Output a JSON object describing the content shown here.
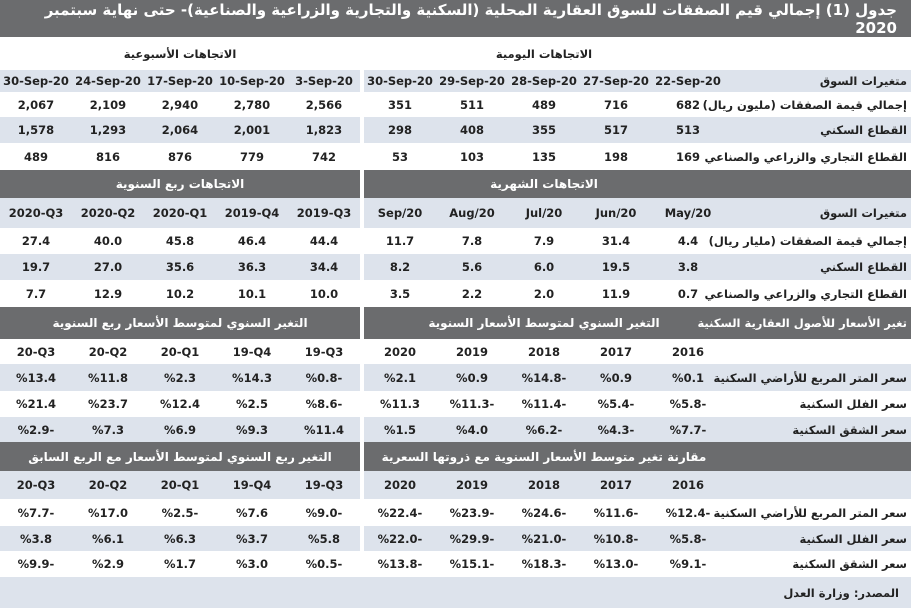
{
  "title": "جدول (1) إجمالي قيم الصفقات للسوق العقارية المحلية (السكنية والتجارية والزراعية والصناعية)- حتى نهاية سبتمبر 2020",
  "sections": [
    {
      "header_label": "",
      "header_right": "الاتجاهات اليومية",
      "header_left": "الاتجاهات الأسبوعية",
      "header_dark": false,
      "cols_label": "متغيرات السوق",
      "cols_right": [
        "22-Sep-20",
        "27-Sep-20",
        "28-Sep-20",
        "29-Sep-20",
        "30-Sep-20"
      ],
      "cols_left": [
        "3-Sep-20",
        "10-Sep-20",
        "17-Sep-20",
        "24-Sep-20",
        "30-Sep-20"
      ],
      "rows": [
        {
          "label": "إجمالي قيمة الصفقات (مليون ريال)",
          "right": [
            "682",
            "716",
            "489",
            "511",
            "351"
          ],
          "left": [
            "2,566",
            "2,780",
            "2,940",
            "2,109",
            "2,067"
          ]
        },
        {
          "label": "القطاع السكني",
          "right": [
            "513",
            "517",
            "355",
            "408",
            "298"
          ],
          "left": [
            "1,823",
            "2,001",
            "2,064",
            "1,293",
            "1,578"
          ]
        },
        {
          "label": "القطاع التجاري والزراعي والصناعي",
          "right": [
            "169",
            "198",
            "135",
            "103",
            "53"
          ],
          "left": [
            "742",
            "779",
            "876",
            "816",
            "489"
          ]
        }
      ]
    },
    {
      "header_label": "",
      "header_right": "الاتجاهات الشهرية",
      "header_left": "الاتجاهات ربع السنوية",
      "header_dark": true,
      "cols_label": "متغيرات السوق",
      "cols_right": [
        "May/20",
        "Jun/20",
        "Jul/20",
        "Aug/20",
        "Sep/20"
      ],
      "cols_left": [
        "2019-Q3",
        "2019-Q4",
        "2020-Q1",
        "2020-Q2",
        "2020-Q3"
      ],
      "rows": [
        {
          "label": "إجمالي قيمة الصفقات (مليار ريال)",
          "right": [
            "4.4",
            "31.4",
            "7.9",
            "7.8",
            "11.7"
          ],
          "left": [
            "44.4",
            "46.4",
            "45.8",
            "40.0",
            "27.4"
          ]
        },
        {
          "label": "القطاع السكني",
          "right": [
            "3.8",
            "19.5",
            "6.0",
            "5.6",
            "8.2"
          ],
          "left": [
            "34.4",
            "36.3",
            "35.6",
            "27.0",
            "19.7"
          ]
        },
        {
          "label": "القطاع التجاري والزراعي والصناعي",
          "right": [
            "0.7",
            "11.9",
            "2.0",
            "2.2",
            "3.5"
          ],
          "left": [
            "10.0",
            "10.1",
            "10.2",
            "12.9",
            "7.7"
          ]
        }
      ]
    },
    {
      "header_label": "تغير الأسعار للأصول العقارية السكنية",
      "header_right": "التغير السنوي لمتوسط الأسعار السنوية",
      "header_left": "التغير السنوي لمتوسط الأسعار ربع السنوية",
      "header_dark": true,
      "cols_label": "",
      "cols_right": [
        "2016",
        "2017",
        "2018",
        "2019",
        "2020"
      ],
      "cols_left": [
        "19-Q3",
        "19-Q4",
        "20-Q1",
        "20-Q2",
        "20-Q3"
      ],
      "rows": [
        {
          "label": "سعر المتر المربع للأراضي السكنية",
          "right": [
            "%0.1",
            "%0.9",
            "%14.8-",
            "%0.9",
            "%2.1"
          ],
          "left": [
            "%0.8-",
            "%14.3",
            "%2.3",
            "%11.8",
            "%13.4"
          ]
        },
        {
          "label": "سعر الفلل السكنية",
          "right": [
            "%5.8-",
            "%5.4-",
            "%11.4-",
            "%11.3-",
            "%11.3"
          ],
          "left": [
            "%8.6-",
            "%2.5",
            "%12.4",
            "%23.7",
            "%21.4"
          ]
        },
        {
          "label": "سعر الشقق السكنية",
          "right": [
            "%7.7-",
            "%4.3-",
            "%6.2-",
            "%4.0",
            "%1.5"
          ],
          "left": [
            "%11.4",
            "%9.3",
            "%6.9",
            "%7.3",
            "%2.9-"
          ]
        }
      ]
    },
    {
      "header_label": "",
      "header_right": "مقارنة تغير متوسط الأسعار السنوية مع ذروتها السعرية",
      "header_left": "التغير ربع السنوي لمتوسط الأسعار مع الربع السابق",
      "header_dark": true,
      "cols_label": "",
      "cols_right": [
        "2016",
        "2017",
        "2018",
        "2019",
        "2020"
      ],
      "cols_left": [
        "19-Q3",
        "19-Q4",
        "20-Q1",
        "20-Q2",
        "20-Q3"
      ],
      "rows": [
        {
          "label": "سعر المتر المربع للأراضي السكنية",
          "right": [
            "%12.4-",
            "%11.6-",
            "%24.6-",
            "%23.9-",
            "%22.4-"
          ],
          "left": [
            "%9.0-",
            "%7.6",
            "%2.5-",
            "%17.0",
            "%7.7-"
          ]
        },
        {
          "label": "سعر الفلل السكنية",
          "right": [
            "%5.8-",
            "%10.8-",
            "%21.0-",
            "%29.9-",
            "%22.0-"
          ],
          "left": [
            "%5.8",
            "%3.7",
            "%6.3",
            "%6.1",
            "%3.8"
          ]
        },
        {
          "label": "سعر الشقق السكنية",
          "right": [
            "%9.1-",
            "%13.0-",
            "%18.3-",
            "%15.1-",
            "%13.8-"
          ],
          "left": [
            "%0.5-",
            "%3.0",
            "%1.7",
            "%2.9",
            "%9.9-"
          ]
        }
      ]
    }
  ],
  "source": "المصدر: وزارة العدل",
  "colors": {
    "header_gray": "#6b6c6e",
    "band_blue": "#dde3ec"
  }
}
